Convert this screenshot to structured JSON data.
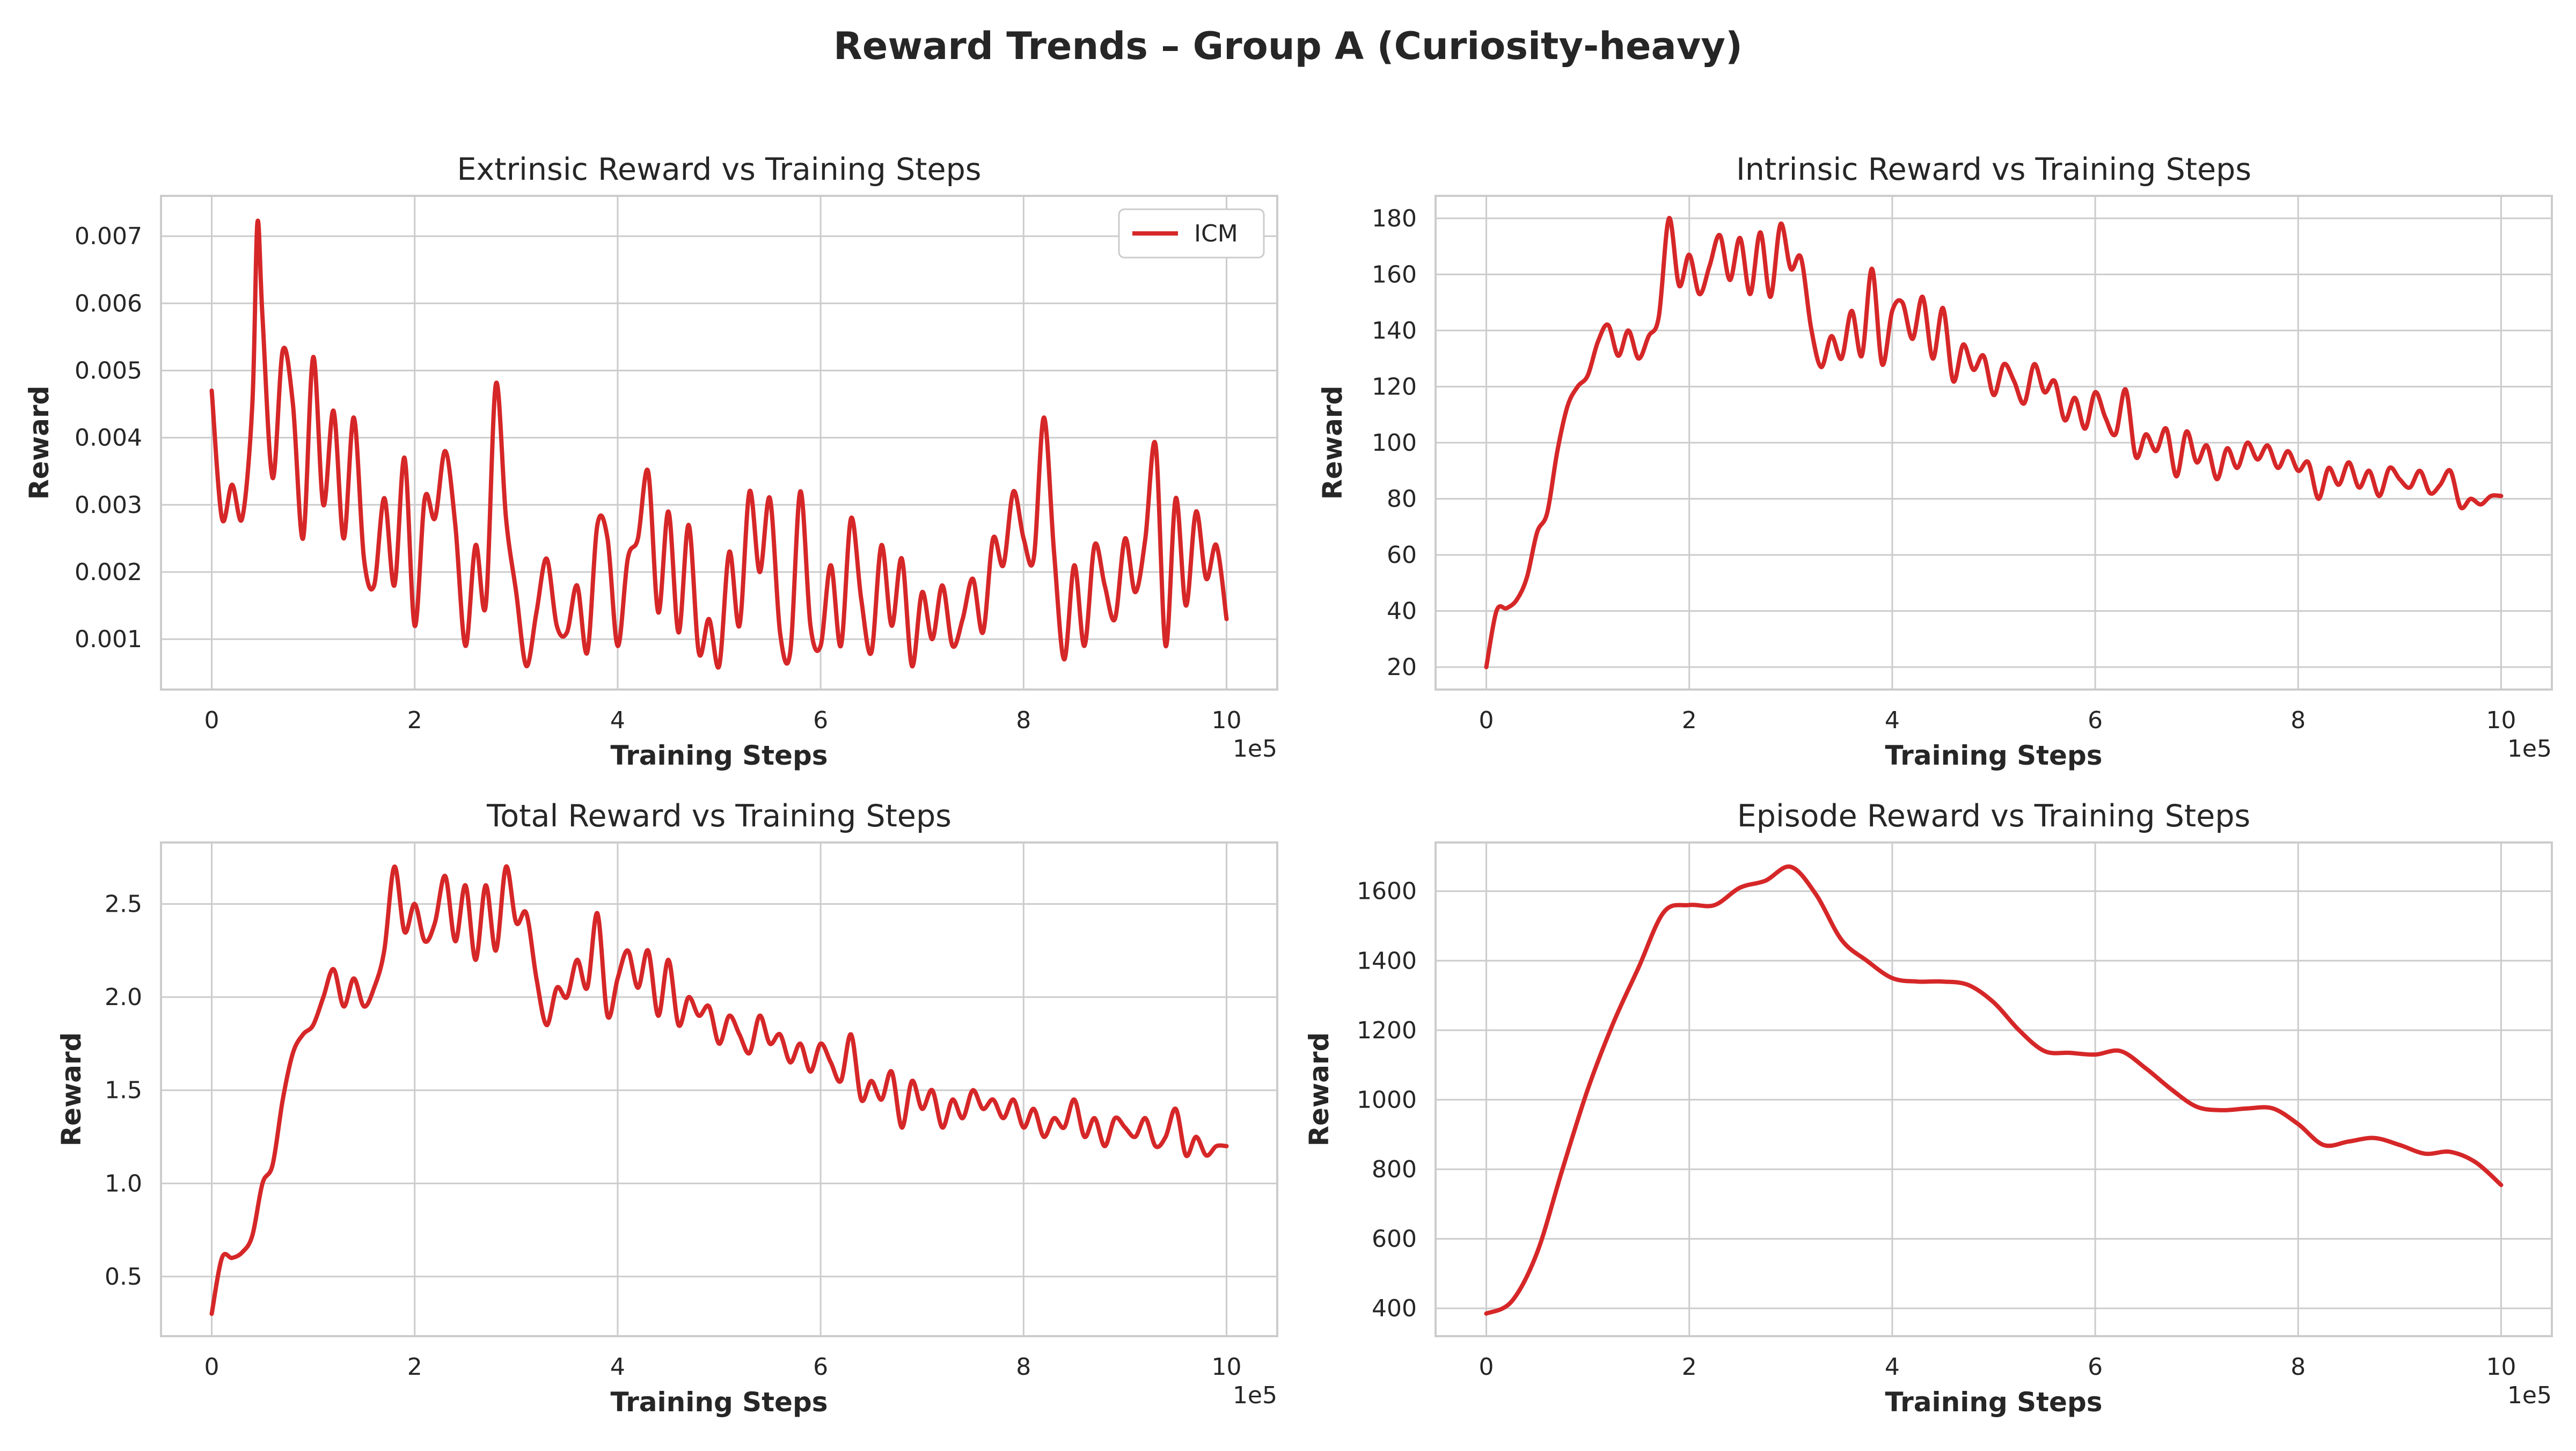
{
  "figure": {
    "title": "Reward Trends – Group A (Curiosity-heavy)",
    "series_color": "#d62728",
    "grid_color": "#cccccc",
    "x_offset_label": "1e5"
  },
  "chart_data": [
    {
      "type": "line",
      "title": "Extrinsic Reward vs Training Steps",
      "xlabel": "Training Steps",
      "ylabel": "Reward",
      "xlim": [
        -0.5,
        10.5
      ],
      "ylim": [
        0.00025,
        0.0076
      ],
      "xticks": [
        0,
        2,
        4,
        6,
        8,
        10
      ],
      "xtick_labels": [
        "0",
        "2",
        "4",
        "6",
        "8",
        "10"
      ],
      "yticks": [
        0.001,
        0.002,
        0.003,
        0.004,
        0.005,
        0.006,
        0.007
      ],
      "ytick_labels": [
        "0.001",
        "0.002",
        "0.003",
        "0.004",
        "0.005",
        "0.006",
        "0.007"
      ],
      "legend": [
        "ICM"
      ],
      "legend_loc": "upper right",
      "series": [
        {
          "name": "ICM",
          "x": [
            0,
            0.1,
            0.2,
            0.3,
            0.4,
            0.45,
            0.5,
            0.6,
            0.7,
            0.8,
            0.9,
            1.0,
            1.1,
            1.2,
            1.3,
            1.4,
            1.5,
            1.6,
            1.7,
            1.8,
            1.9,
            2.0,
            2.1,
            2.2,
            2.3,
            2.4,
            2.5,
            2.6,
            2.7,
            2.8,
            2.9,
            3.0,
            3.1,
            3.2,
            3.3,
            3.4,
            3.5,
            3.6,
            3.7,
            3.8,
            3.9,
            4.0,
            4.1,
            4.2,
            4.3,
            4.4,
            4.5,
            4.6,
            4.7,
            4.8,
            4.9,
            5.0,
            5.1,
            5.2,
            5.3,
            5.4,
            5.5,
            5.6,
            5.7,
            5.8,
            5.9,
            6.0,
            6.1,
            6.2,
            6.3,
            6.4,
            6.5,
            6.6,
            6.7,
            6.8,
            6.9,
            7.0,
            7.1,
            7.2,
            7.3,
            7.4,
            7.5,
            7.6,
            7.7,
            7.8,
            7.9,
            8.0,
            8.1,
            8.2,
            8.3,
            8.4,
            8.5,
            8.6,
            8.7,
            8.8,
            8.9,
            9.0,
            9.1,
            9.2,
            9.3,
            9.4,
            9.5,
            9.6,
            9.7,
            9.8,
            9.9,
            10.0
          ],
          "y": [
            0.0047,
            0.0028,
            0.0033,
            0.0028,
            0.0045,
            0.0072,
            0.0058,
            0.0034,
            0.0053,
            0.0045,
            0.0025,
            0.0052,
            0.003,
            0.0044,
            0.0025,
            0.0043,
            0.0022,
            0.0018,
            0.0031,
            0.0018,
            0.0037,
            0.0012,
            0.0031,
            0.0028,
            0.0038,
            0.0027,
            0.0009,
            0.0024,
            0.0015,
            0.0048,
            0.0028,
            0.0017,
            0.0006,
            0.0014,
            0.0022,
            0.0012,
            0.0011,
            0.0018,
            0.0008,
            0.0027,
            0.0025,
            0.0009,
            0.0022,
            0.0025,
            0.0035,
            0.0014,
            0.0029,
            0.0011,
            0.0027,
            0.0008,
            0.0013,
            0.0006,
            0.0023,
            0.0012,
            0.0032,
            0.002,
            0.0031,
            0.0011,
            0.0008,
            0.0032,
            0.0012,
            0.0009,
            0.0021,
            0.0009,
            0.0028,
            0.0016,
            0.0008,
            0.0024,
            0.0012,
            0.0022,
            0.0006,
            0.0017,
            0.001,
            0.0018,
            0.0009,
            0.0013,
            0.0019,
            0.0011,
            0.0025,
            0.0021,
            0.0032,
            0.0025,
            0.0022,
            0.0043,
            0.0023,
            0.0007,
            0.0021,
            0.0009,
            0.0024,
            0.0018,
            0.0013,
            0.0025,
            0.0017,
            0.0025,
            0.0039,
            0.0009,
            0.0031,
            0.0015,
            0.0029,
            0.0019,
            0.0024,
            0.0013
          ]
        }
      ]
    },
    {
      "type": "line",
      "title": "Intrinsic Reward vs Training Steps",
      "xlabel": "Training Steps",
      "ylabel": "Reward",
      "xlim": [
        -0.5,
        10.5
      ],
      "ylim": [
        12,
        188
      ],
      "xticks": [
        0,
        2,
        4,
        6,
        8,
        10
      ],
      "xtick_labels": [
        "0",
        "2",
        "4",
        "6",
        "8",
        "10"
      ],
      "yticks": [
        20,
        40,
        60,
        80,
        100,
        120,
        140,
        160,
        180
      ],
      "ytick_labels": [
        "20",
        "40",
        "60",
        "80",
        "100",
        "120",
        "140",
        "160",
        "180"
      ],
      "series": [
        {
          "name": "ICM",
          "x": [
            0,
            0.1,
            0.2,
            0.3,
            0.4,
            0.5,
            0.6,
            0.7,
            0.8,
            0.9,
            1.0,
            1.1,
            1.2,
            1.3,
            1.4,
            1.5,
            1.6,
            1.7,
            1.8,
            1.9,
            2.0,
            2.1,
            2.2,
            2.3,
            2.4,
            2.5,
            2.6,
            2.7,
            2.8,
            2.9,
            3.0,
            3.1,
            3.2,
            3.3,
            3.4,
            3.5,
            3.6,
            3.7,
            3.8,
            3.9,
            4.0,
            4.1,
            4.2,
            4.3,
            4.4,
            4.5,
            4.6,
            4.7,
            4.8,
            4.9,
            5.0,
            5.1,
            5.2,
            5.3,
            5.4,
            5.5,
            5.6,
            5.7,
            5.8,
            5.9,
            6.0,
            6.1,
            6.2,
            6.3,
            6.4,
            6.5,
            6.6,
            6.7,
            6.8,
            6.9,
            7.0,
            7.1,
            7.2,
            7.3,
            7.4,
            7.5,
            7.6,
            7.7,
            7.8,
            7.9,
            8.0,
            8.1,
            8.2,
            8.3,
            8.4,
            8.5,
            8.6,
            8.7,
            8.8,
            8.9,
            9.0,
            9.1,
            9.2,
            9.3,
            9.4,
            9.5,
            9.6,
            9.7,
            9.8,
            9.9,
            10.0
          ],
          "y": [
            20,
            40,
            41,
            44,
            52,
            68,
            75,
            97,
            113,
            120,
            124,
            136,
            142,
            131,
            140,
            130,
            138,
            145,
            180,
            156,
            167,
            153,
            163,
            174,
            158,
            173,
            153,
            175,
            152,
            178,
            162,
            166,
            141,
            127,
            138,
            130,
            147,
            131,
            162,
            128,
            147,
            150,
            137,
            152,
            130,
            148,
            122,
            135,
            126,
            131,
            117,
            128,
            122,
            114,
            128,
            118,
            122,
            108,
            116,
            105,
            118,
            109,
            103,
            119,
            95,
            103,
            97,
            105,
            88,
            104,
            93,
            99,
            87,
            98,
            91,
            100,
            94,
            99,
            91,
            97,
            90,
            93,
            80,
            91,
            85,
            93,
            84,
            90,
            81,
            91,
            87,
            84,
            90,
            82,
            85,
            90,
            77,
            80,
            78,
            81,
            81
          ]
        }
      ]
    },
    {
      "type": "line",
      "title": "Total Reward vs Training Steps",
      "xlabel": "Training Steps",
      "ylabel": "Reward",
      "xlim": [
        -0.5,
        10.5
      ],
      "ylim": [
        0.18,
        2.83
      ],
      "xticks": [
        0,
        2,
        4,
        6,
        8,
        10
      ],
      "xtick_labels": [
        "0",
        "2",
        "4",
        "6",
        "8",
        "10"
      ],
      "yticks": [
        0.5,
        1.0,
        1.5,
        2.0,
        2.5
      ],
      "ytick_labels": [
        "0.5",
        "1.0",
        "1.5",
        "2.0",
        "2.5"
      ],
      "series": [
        {
          "name": "ICM",
          "x": [
            0,
            0.1,
            0.2,
            0.3,
            0.4,
            0.5,
            0.6,
            0.7,
            0.8,
            0.9,
            1.0,
            1.1,
            1.2,
            1.3,
            1.4,
            1.5,
            1.6,
            1.7,
            1.8,
            1.9,
            2.0,
            2.1,
            2.2,
            2.3,
            2.4,
            2.5,
            2.6,
            2.7,
            2.8,
            2.9,
            3.0,
            3.1,
            3.2,
            3.3,
            3.4,
            3.5,
            3.6,
            3.7,
            3.8,
            3.9,
            4.0,
            4.1,
            4.2,
            4.3,
            4.4,
            4.5,
            4.6,
            4.7,
            4.8,
            4.9,
            5.0,
            5.1,
            5.2,
            5.3,
            5.4,
            5.5,
            5.6,
            5.7,
            5.8,
            5.9,
            6.0,
            6.1,
            6.2,
            6.3,
            6.4,
            6.5,
            6.6,
            6.7,
            6.8,
            6.9,
            7.0,
            7.1,
            7.2,
            7.3,
            7.4,
            7.5,
            7.6,
            7.7,
            7.8,
            7.9,
            8.0,
            8.1,
            8.2,
            8.3,
            8.4,
            8.5,
            8.6,
            8.7,
            8.8,
            8.9,
            9.0,
            9.1,
            9.2,
            9.3,
            9.4,
            9.5,
            9.6,
            9.7,
            9.8,
            9.9,
            10.0
          ],
          "y": [
            0.3,
            0.6,
            0.6,
            0.63,
            0.72,
            1.0,
            1.1,
            1.45,
            1.7,
            1.8,
            1.85,
            2.0,
            2.15,
            1.95,
            2.1,
            1.95,
            2.05,
            2.25,
            2.7,
            2.35,
            2.5,
            2.3,
            2.4,
            2.65,
            2.3,
            2.6,
            2.2,
            2.6,
            2.25,
            2.7,
            2.4,
            2.45,
            2.1,
            1.85,
            2.05,
            2.0,
            2.2,
            2.05,
            2.45,
            1.9,
            2.1,
            2.25,
            2.05,
            2.25,
            1.9,
            2.2,
            1.85,
            2.0,
            1.9,
            1.95,
            1.75,
            1.9,
            1.8,
            1.7,
            1.9,
            1.75,
            1.8,
            1.65,
            1.75,
            1.6,
            1.75,
            1.65,
            1.55,
            1.8,
            1.45,
            1.55,
            1.45,
            1.6,
            1.3,
            1.55,
            1.4,
            1.5,
            1.3,
            1.45,
            1.35,
            1.5,
            1.4,
            1.45,
            1.35,
            1.45,
            1.3,
            1.4,
            1.25,
            1.35,
            1.3,
            1.45,
            1.25,
            1.35,
            1.2,
            1.35,
            1.3,
            1.25,
            1.35,
            1.2,
            1.25,
            1.4,
            1.15,
            1.25,
            1.15,
            1.2,
            1.2
          ]
        }
      ]
    },
    {
      "type": "line",
      "title": "Episode Reward vs Training Steps",
      "xlabel": "Training Steps",
      "ylabel": "Reward",
      "xlim": [
        -0.5,
        10.5
      ],
      "ylim": [
        320,
        1740
      ],
      "xticks": [
        0,
        2,
        4,
        6,
        8,
        10
      ],
      "xtick_labels": [
        "0",
        "2",
        "4",
        "6",
        "8",
        "10"
      ],
      "yticks": [
        400,
        600,
        800,
        1000,
        1200,
        1400,
        1600
      ],
      "ytick_labels": [
        "400",
        "600",
        "800",
        "1000",
        "1200",
        "1400",
        "1600"
      ],
      "series": [
        {
          "name": "ICM",
          "x": [
            0,
            0.25,
            0.5,
            0.75,
            1.0,
            1.25,
            1.5,
            1.75,
            2.0,
            2.25,
            2.5,
            2.75,
            3.0,
            3.25,
            3.5,
            3.75,
            4.0,
            4.25,
            4.5,
            4.75,
            5.0,
            5.25,
            5.5,
            5.75,
            6.0,
            6.25,
            6.5,
            6.75,
            7.0,
            7.25,
            7.5,
            7.75,
            8.0,
            8.25,
            8.5,
            8.75,
            9.0,
            9.25,
            9.5,
            9.75,
            10.0
          ],
          "y": [
            385,
            420,
            560,
            800,
            1030,
            1220,
            1380,
            1540,
            1560,
            1560,
            1610,
            1630,
            1670,
            1590,
            1460,
            1400,
            1350,
            1340,
            1340,
            1330,
            1280,
            1200,
            1140,
            1135,
            1130,
            1140,
            1090,
            1030,
            980,
            970,
            975,
            975,
            930,
            870,
            880,
            890,
            870,
            845,
            850,
            820,
            755
          ]
        }
      ]
    }
  ]
}
